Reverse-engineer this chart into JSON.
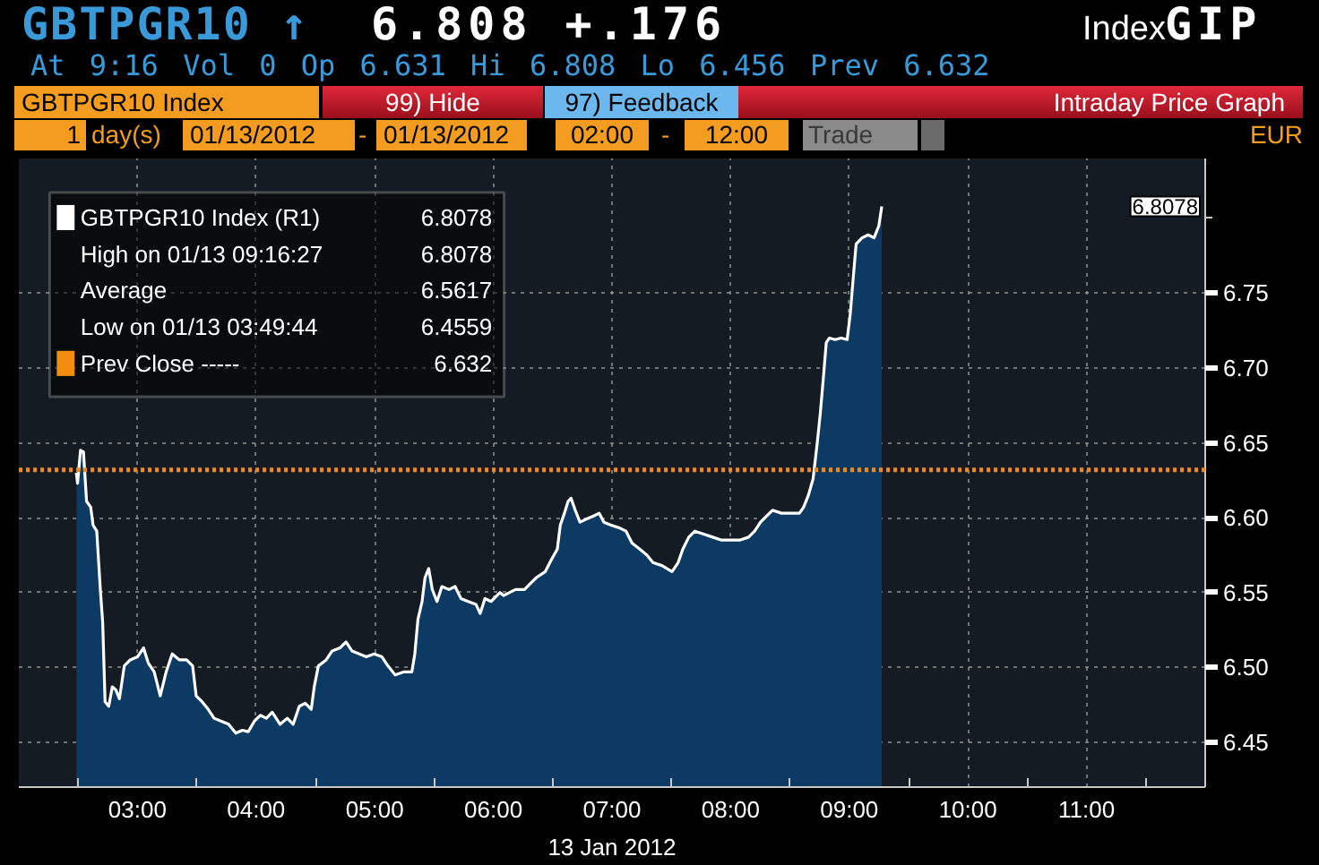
{
  "chart_data": {
    "type": "area",
    "title": "GBTPGR10 ↑",
    "subtitle": "At 9:16 Vol 0 Op 6.631 Hi 6.808 Lo 6.456 Prev 6.632",
    "xlabel": "13 Jan 2012",
    "annotations": [
      "6.808 +.176",
      "Index",
      "GIP",
      "GBTPGR10 Index",
      "99) Hide",
      "97) Feedback",
      "Intraday Price Graph",
      "1",
      "day(s)",
      "01/13/2012",
      "-",
      "01/13/2012",
      "02:00",
      "-",
      "12:00",
      "Trade",
      "EUR",
      "6.8078",
      "High on 01/13 09:16:27",
      "6.8078",
      "Average",
      "6.5617",
      "Low on 01/13 03:49:44",
      "6.4559",
      "6.632",
      "6.8078"
    ],
    "series": [
      {
        "name": "GBTPGR10 Index (R1)",
        "color": "#ffffff",
        "x": [
          2.485,
          2.495,
          2.52,
          2.545,
          2.571,
          2.606,
          2.626,
          2.657,
          2.687,
          2.707,
          2.727,
          2.758,
          2.788,
          2.818,
          2.848,
          2.889,
          2.939,
          3.0,
          3.051,
          3.091,
          3.141,
          3.192,
          3.242,
          3.293,
          3.354,
          3.414,
          3.465,
          3.495,
          3.545,
          3.596,
          3.646,
          3.707,
          3.768,
          3.829,
          3.884,
          3.934,
          3.985,
          4.035,
          4.086,
          4.136,
          4.202,
          4.263,
          4.313,
          4.364,
          4.414,
          4.465,
          4.49,
          4.525,
          4.591,
          4.641,
          4.707,
          4.758,
          4.808,
          4.869,
          4.929,
          4.995,
          5.061,
          5.111,
          5.172,
          5.247,
          5.313,
          5.338,
          5.364,
          5.399,
          5.424,
          5.455,
          5.485,
          5.525,
          5.566,
          5.626,
          5.677,
          5.727,
          5.788,
          5.854,
          5.889,
          5.929,
          5.98,
          6.056,
          6.086,
          6.186,
          6.262,
          6.312,
          6.363,
          6.438,
          6.489,
          6.539,
          6.564,
          6.599,
          6.63,
          6.655,
          6.69,
          6.73,
          6.781,
          6.841,
          6.892,
          6.932,
          6.992,
          7.068,
          7.118,
          7.169,
          7.234,
          7.295,
          7.345,
          7.421,
          7.506,
          7.557,
          7.597,
          7.647,
          7.698,
          7.773,
          7.849,
          7.924,
          8.0,
          8.076,
          8.151,
          8.202,
          8.252,
          8.302,
          8.353,
          8.428,
          8.504,
          8.58,
          8.615,
          8.655,
          8.695,
          8.73,
          8.756,
          8.781,
          8.806,
          8.831,
          8.882,
          8.932,
          8.982,
          9.008,
          9.033,
          9.058,
          9.108,
          9.159,
          9.209,
          9.249,
          9.274
        ],
        "values": [
          6.63,
          6.623,
          6.645,
          6.644,
          6.611,
          6.607,
          6.595,
          6.591,
          6.552,
          6.53,
          6.477,
          6.474,
          6.487,
          6.485,
          6.479,
          6.501,
          6.505,
          6.507,
          6.513,
          6.503,
          6.497,
          6.481,
          6.497,
          6.509,
          6.505,
          6.505,
          6.501,
          6.481,
          6.477,
          6.472,
          6.466,
          6.464,
          6.462,
          6.456,
          6.458,
          6.457,
          6.464,
          6.468,
          6.466,
          6.47,
          6.462,
          6.466,
          6.462,
          6.474,
          6.476,
          6.472,
          6.487,
          6.501,
          6.505,
          6.511,
          6.513,
          6.517,
          6.511,
          6.509,
          6.507,
          6.509,
          6.507,
          6.501,
          6.495,
          6.497,
          6.497,
          6.509,
          6.532,
          6.544,
          6.56,
          6.566,
          6.552,
          6.544,
          6.554,
          6.552,
          6.554,
          6.546,
          6.544,
          6.542,
          6.536,
          6.546,
          6.544,
          6.55,
          6.548,
          6.552,
          6.552,
          6.556,
          6.56,
          6.564,
          6.572,
          6.579,
          6.595,
          6.603,
          6.611,
          6.613,
          6.605,
          6.597,
          6.599,
          6.601,
          6.603,
          6.597,
          6.595,
          6.593,
          6.591,
          6.583,
          6.579,
          6.575,
          6.57,
          6.568,
          6.564,
          6.57,
          6.579,
          6.587,
          6.591,
          6.589,
          6.587,
          6.585,
          6.585,
          6.585,
          6.587,
          6.591,
          6.597,
          6.601,
          6.605,
          6.603,
          6.603,
          6.603,
          6.607,
          6.615,
          6.626,
          6.65,
          6.67,
          6.693,
          6.717,
          6.72,
          6.719,
          6.72,
          6.719,
          6.736,
          6.76,
          6.783,
          6.787,
          6.789,
          6.787,
          6.795,
          6.808
        ]
      }
    ],
    "ref_lines": [
      {
        "axis": "y",
        "value": 6.632,
        "label": "Prev Close -----",
        "color": "#f28c0f",
        "line_style": "dotted"
      }
    ],
    "xlim": [
      2,
      12
    ],
    "ylim": [
      6.42,
      6.84
    ],
    "xticks": [
      {
        "value": 2.5,
        "label": null
      },
      {
        "value": 3,
        "label": "03:00"
      },
      {
        "value": 3.5,
        "label": null
      },
      {
        "value": 4,
        "label": "04:00"
      },
      {
        "value": 4.5,
        "label": null
      },
      {
        "value": 5,
        "label": "05:00"
      },
      {
        "value": 5.5,
        "label": null
      },
      {
        "value": 6,
        "label": "06:00"
      },
      {
        "value": 6.5,
        "label": null
      },
      {
        "value": 7,
        "label": "07:00"
      },
      {
        "value": 7.5,
        "label": null
      },
      {
        "value": 8,
        "label": "08:00"
      },
      {
        "value": 8.5,
        "label": null
      },
      {
        "value": 9,
        "label": "09:00"
      },
      {
        "value": 9.5,
        "label": null
      },
      {
        "value": 10,
        "label": "10:00"
      },
      {
        "value": 10.5,
        "label": null
      },
      {
        "value": 11,
        "label": "11:00"
      },
      {
        "value": 11.5,
        "label": null
      }
    ],
    "yticks": [
      6.45,
      {
        "value": 6.5,
        "label": "6.50"
      },
      6.55,
      {
        "value": 6.6,
        "label": "6.60"
      },
      6.65,
      {
        "value": 6.7,
        "label": "6.70"
      },
      6.75,
      {
        "value": 6.8,
        "label": null
      }
    ],
    "grid": true,
    "legend": "top left"
  }
}
